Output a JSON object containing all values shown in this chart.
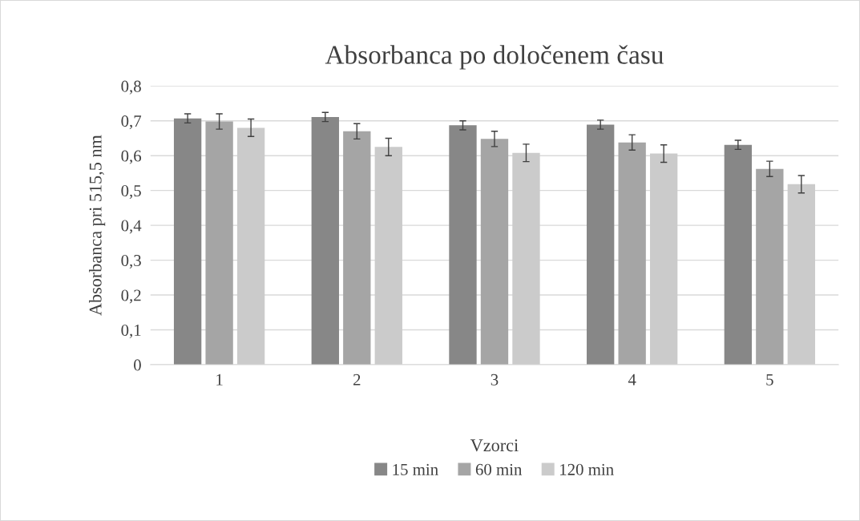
{
  "chart_data": {
    "type": "bar",
    "title": "Absorbanca po določenem času",
    "xlabel": "Vzorci",
    "ylabel": "Absorbanca pri 515,5 nm",
    "categories": [
      "1",
      "2",
      "3",
      "4",
      "5"
    ],
    "series": [
      {
        "name": "15 min",
        "color": "#878787",
        "values": [
          0.707,
          0.711,
          0.687,
          0.689,
          0.631
        ],
        "errors": [
          0.013,
          0.013,
          0.013,
          0.013,
          0.013
        ]
      },
      {
        "name": "60 min",
        "color": "#a5a5a5",
        "values": [
          0.698,
          0.67,
          0.648,
          0.638,
          0.562
        ],
        "errors": [
          0.022,
          0.022,
          0.022,
          0.022,
          0.022
        ]
      },
      {
        "name": "120 min",
        "color": "#cbcbcb",
        "values": [
          0.68,
          0.625,
          0.608,
          0.606,
          0.518
        ],
        "errors": [
          0.025,
          0.025,
          0.025,
          0.025,
          0.025
        ]
      }
    ],
    "ylim": [
      0,
      0.8
    ],
    "yticks": [
      0,
      {
        "value": 0.1,
        "label": "0,1"
      },
      {
        "value": 0.2,
        "label": "0,2"
      },
      {
        "value": 0.3,
        "label": "0,3"
      },
      {
        "value": 0.4,
        "label": "0,4"
      },
      {
        "value": 0.5,
        "label": "0,5"
      },
      {
        "value": 0.6,
        "label": "0,6"
      },
      {
        "value": 0.7,
        "label": "0,7"
      },
      {
        "value": 0.8,
        "label": "0,8"
      }
    ],
    "grid": "y",
    "legend": "bottom"
  }
}
